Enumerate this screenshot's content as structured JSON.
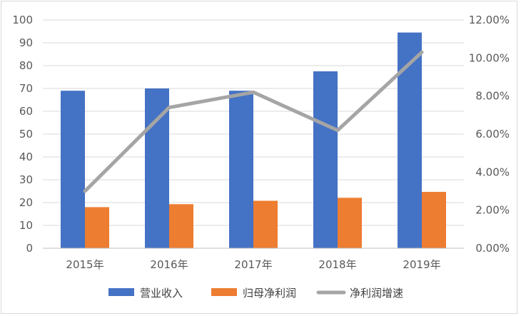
{
  "chart_data": {
    "type": "bar",
    "categories": [
      "2015年",
      "2016年",
      "2017年",
      "2018年",
      "2019年"
    ],
    "series": [
      {
        "name": "营业收入",
        "kind": "bar",
        "axis": "left",
        "color": "#4472C4",
        "values": [
          69,
          70,
          69,
          77.5,
          94.5
        ]
      },
      {
        "name": "归母净利润",
        "kind": "bar",
        "axis": "left",
        "color": "#ED7D31",
        "values": [
          18,
          19.3,
          20.8,
          22.1,
          24.7
        ]
      },
      {
        "name": "净利润增速",
        "kind": "line",
        "axis": "right",
        "color": "#A5A5A5",
        "values": [
          0.03,
          0.074,
          0.082,
          0.062,
          0.103
        ]
      }
    ],
    "y_left": {
      "ylim": [
        0,
        100
      ],
      "ticks": [
        "0",
        "10",
        "20",
        "30",
        "40",
        "50",
        "60",
        "70",
        "80",
        "90",
        "100"
      ]
    },
    "y_right": {
      "ylim": [
        0,
        0.12
      ],
      "ticks": [
        "0.00%",
        "2.00%",
        "4.00%",
        "6.00%",
        "8.00%",
        "10.00%",
        "12.00%"
      ]
    },
    "grid": true,
    "legend": "bottom-center"
  }
}
